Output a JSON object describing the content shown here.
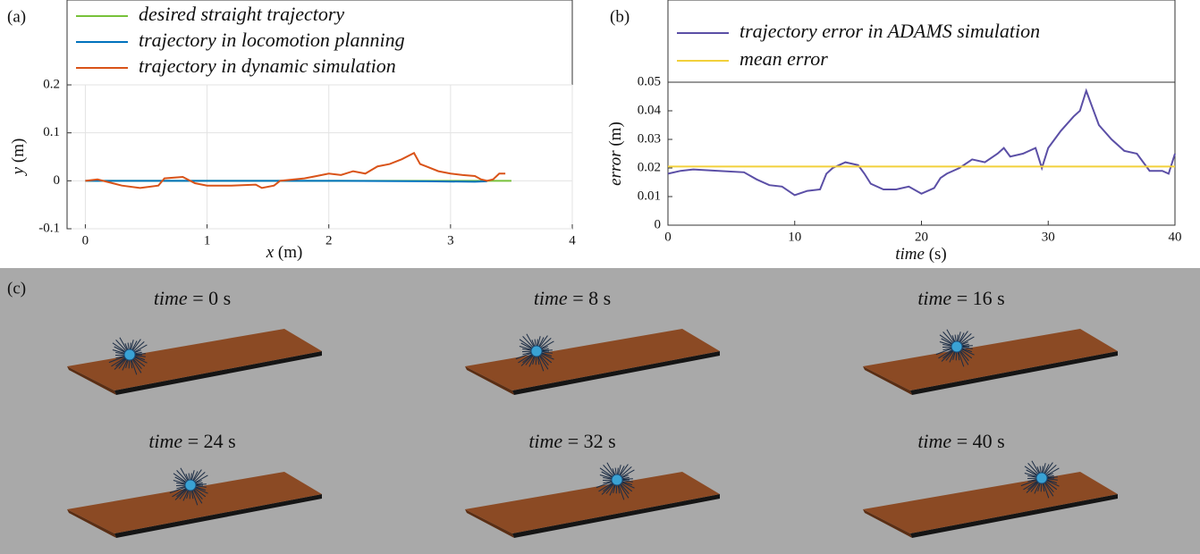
{
  "panel_labels": [
    "(a)",
    "(b)",
    "(c)"
  ],
  "chart_data": [
    {
      "type": "line",
      "xlabel": {
        "var": "x",
        "unit": "(m)"
      },
      "ylabel": {
        "var": "y",
        "unit": "(m)"
      },
      "xlim": [
        -0.15,
        4
      ],
      "xticks": [
        0,
        1,
        2,
        3,
        4
      ],
      "ylim": [
        -0.1,
        0.2
      ],
      "yticks": [
        -0.1,
        0,
        0.1,
        0.2
      ],
      "grid": true,
      "series": [
        {
          "name": "desired straight trajectory",
          "color": "#77c13a",
          "x": [
            0,
            3.5
          ],
          "values": [
            0,
            0
          ]
        },
        {
          "name": "trajectory in locomotion planning",
          "color": "#0072bd",
          "x": [
            0,
            1,
            2,
            2.8,
            3.2,
            3.3
          ],
          "values": [
            0,
            0,
            0,
            -0.001,
            -0.002,
            -0.001
          ]
        },
        {
          "name": "trajectory in dynamic simulation",
          "color": "#d95319",
          "x": [
            0,
            0.1,
            0.3,
            0.45,
            0.6,
            0.65,
            0.8,
            0.9,
            1.0,
            1.2,
            1.4,
            1.45,
            1.55,
            1.6,
            1.8,
            1.9,
            2.0,
            2.1,
            2.2,
            2.3,
            2.4,
            2.5,
            2.6,
            2.7,
            2.75,
            2.8,
            2.9,
            3.0,
            3.1,
            3.2,
            3.25,
            3.3,
            3.35,
            3.4,
            3.45
          ],
          "values": [
            0,
            0.003,
            -0.01,
            -0.015,
            -0.01,
            0.005,
            0.008,
            -0.005,
            -0.01,
            -0.01,
            -0.008,
            -0.015,
            -0.01,
            0,
            0.005,
            0.01,
            0.015,
            0.012,
            0.02,
            0.015,
            0.03,
            0.035,
            0.045,
            0.058,
            0.035,
            0.03,
            0.02,
            0.015,
            0.012,
            0.01,
            0.003,
            0,
            0.003,
            0.015,
            0.015
          ]
        }
      ]
    },
    {
      "type": "line",
      "xlabel": {
        "var": "time",
        "unit": "(s)"
      },
      "ylabel": {
        "var": "error",
        "unit": "(m)"
      },
      "xlim": [
        0,
        40
      ],
      "xticks": [
        0,
        10,
        20,
        30,
        40
      ],
      "ylim": [
        0,
        0.05
      ],
      "yticks": [
        0,
        0.01,
        0.02,
        0.03,
        0.04,
        0.05
      ],
      "grid": false,
      "series": [
        {
          "name": "trajectory error in ADAMS simulation",
          "color": "#5b4fa6",
          "x": [
            0,
            1,
            2,
            4,
            6,
            7,
            8,
            9,
            10,
            11,
            12,
            12.5,
            13,
            14,
            15,
            15.5,
            16,
            17,
            18,
            19,
            20,
            21,
            21.5,
            22,
            23,
            24,
            25,
            26,
            26.5,
            27,
            28,
            29,
            29.5,
            30,
            31,
            32,
            32.5,
            33,
            33.5,
            34,
            35,
            36,
            37,
            38,
            39,
            39.5,
            40
          ],
          "values": [
            0.018,
            0.019,
            0.0195,
            0.019,
            0.0185,
            0.016,
            0.014,
            0.0135,
            0.0105,
            0.012,
            0.0125,
            0.018,
            0.02,
            0.022,
            0.021,
            0.018,
            0.0145,
            0.0125,
            0.0125,
            0.0135,
            0.011,
            0.013,
            0.0165,
            0.018,
            0.02,
            0.023,
            0.022,
            0.025,
            0.027,
            0.024,
            0.025,
            0.027,
            0.02,
            0.027,
            0.033,
            0.038,
            0.04,
            0.047,
            0.041,
            0.035,
            0.03,
            0.026,
            0.025,
            0.019,
            0.019,
            0.018,
            0.025
          ]
        },
        {
          "name": "mean error",
          "color": "#f2d03b",
          "x": [
            0,
            40
          ],
          "values": [
            0.0205,
            0.0205
          ]
        }
      ]
    }
  ],
  "snapshots": [
    {
      "var": "time",
      "text": "= 0 s"
    },
    {
      "var": "time",
      "text": "= 8 s"
    },
    {
      "var": "time",
      "text": "= 16 s"
    },
    {
      "var": "time",
      "text": "= 24 s"
    },
    {
      "var": "time",
      "text": "= 32 s"
    },
    {
      "var": "time",
      "text": "= 40 s"
    }
  ]
}
